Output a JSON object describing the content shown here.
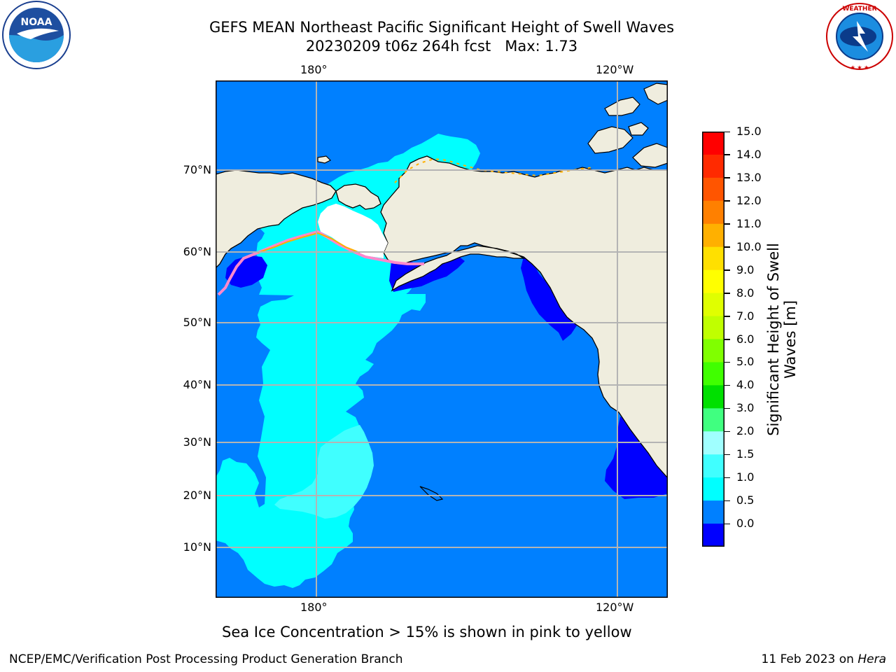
{
  "title": {
    "line1": "GEFS MEAN Northeast Pacific Significant Height of Swell Waves",
    "line2": "20230209 t06z 264h fcst   Max: 1.73"
  },
  "map": {
    "lon_labels": [
      "180°",
      "120°W"
    ],
    "lat_labels": [
      "70°N",
      "60°N",
      "50°N",
      "40°N",
      "30°N",
      "20°N",
      "10°N"
    ],
    "colors": {
      "land": "#efedde",
      "ocean_low": "#0000ff",
      "ocean_mid": "#0080ff",
      "ocean_high": "#00ffff",
      "ocean_higher": "#40ffff",
      "gridline": "#b4b4b4",
      "sea_ice": "#ff88cc"
    }
  },
  "colorbar": {
    "title_line1": "Significant Height of Swell",
    "title_line2": "Waves [m]",
    "ticks": [
      "15.0",
      "14.0",
      "13.0",
      "12.0",
      "11.0",
      "10.0",
      "9.0",
      "8.0",
      "7.0",
      "6.0",
      "5.0",
      "4.0",
      "3.0",
      "2.0",
      "1.5",
      "1.0",
      "0.5",
      "0.0"
    ],
    "colors_top_to_bottom": [
      "#ff0000",
      "#ff2a00",
      "#ff5500",
      "#ff8000",
      "#ffb000",
      "#ffe000",
      "#ffff00",
      "#e0ff00",
      "#c0ff00",
      "#80ff00",
      "#40ff00",
      "#00e000",
      "#40ff80",
      "#a0ffff",
      "#40ffff",
      "#00ffff",
      "#0080ff",
      "#0000ff"
    ]
  },
  "caption": "Sea Ice Concentration > 15% is shown in pink to yellow",
  "footer": {
    "left": "NCEP/EMC/Verification Post Processing Product Generation Branch",
    "right_prefix": "11 Feb 2023 on ",
    "right_host": "Hera"
  },
  "logos": {
    "noaa_text": "NOAA",
    "noaa_ring": "NATIONAL OCEANIC AND ATMOSPHERIC ADMINISTRATION · U.S. DEPARTMENT OF COMMERCE",
    "nws_ring": "NATIONAL WEATHER SERVICE"
  }
}
